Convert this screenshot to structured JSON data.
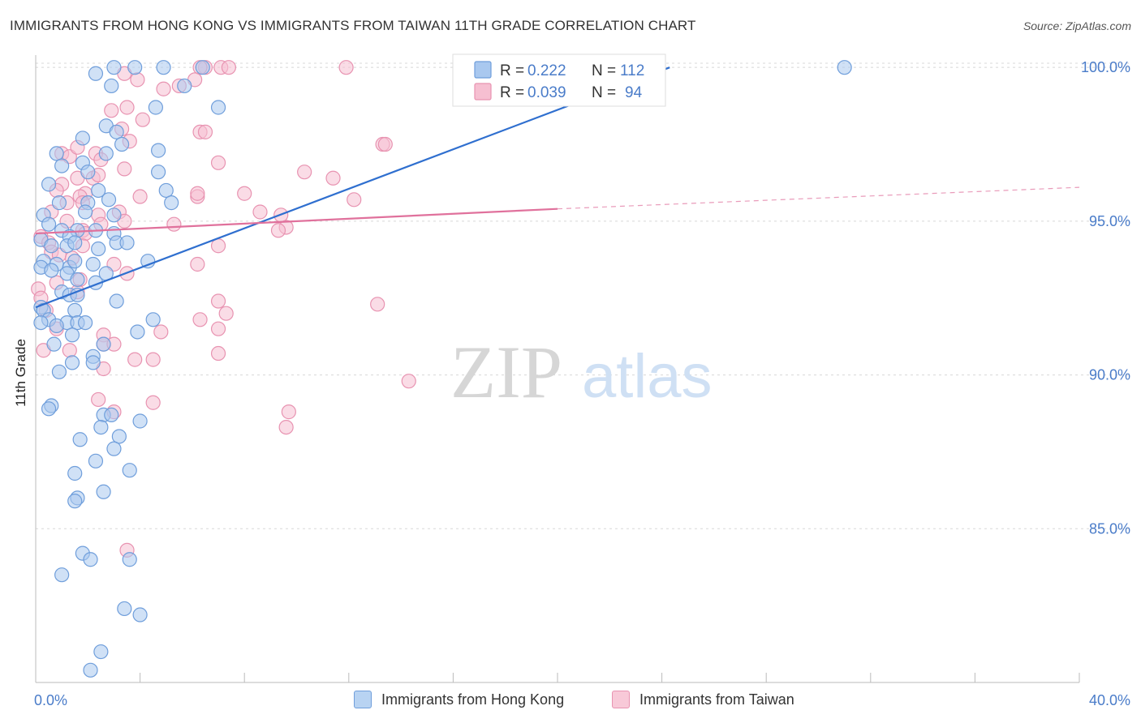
{
  "title": "IMMIGRANTS FROM HONG KONG VS IMMIGRANTS FROM TAIWAN 11TH GRADE CORRELATION CHART",
  "source": "Source: ZipAtlas.com",
  "watermark": {
    "zip": "ZIP",
    "atlas": "atlas"
  },
  "colors": {
    "blue_fill": "#a9c8ef",
    "blue_stroke": "#6f9edb",
    "blue_line": "#2f6fcf",
    "pink_fill": "#f6bfd1",
    "pink_stroke": "#e893b1",
    "pink_line": "#e0719c",
    "axis_text": "#4a7cc9",
    "grid": "#d8d8d8"
  },
  "chart_data": {
    "type": "scatter",
    "title": "IMMIGRANTS FROM HONG KONG VS IMMIGRANTS FROM TAIWAN 11TH GRADE CORRELATION CHART",
    "xlabel": "",
    "ylabel": "11th Grade",
    "xlim": [
      0,
      40
    ],
    "ylim": [
      80,
      100.4
    ],
    "x_tick_labels": [
      {
        "value": 0,
        "label": "0.0%"
      },
      {
        "value": 40,
        "label": "40.0%"
      }
    ],
    "y_ticks": [
      {
        "value": 100,
        "label": "100.0%"
      },
      {
        "value": 95,
        "label": "95.0%"
      },
      {
        "value": 90,
        "label": "90.0%"
      },
      {
        "value": 85,
        "label": "85.0%"
      }
    ],
    "legend": [
      {
        "series": "Immigrants from Hong Kong",
        "r_label": "R =",
        "r": "0.222",
        "n_label": "N =",
        "n": "112"
      },
      {
        "series": "Immigrants from Taiwan",
        "r_label": "R =",
        "r": "0.039",
        "n_label": "N =",
        "n": "94"
      }
    ],
    "series": [
      {
        "name": "Immigrants from Hong Kong",
        "color": "#a9c8ef",
        "trend": {
          "x0": 0,
          "y0": 92.2,
          "x1": 24.3,
          "y1": 100.0,
          "x_end": 30.5,
          "y_end": 102.0
        },
        "points": [
          [
            3.0,
            100.0
          ],
          [
            3.8,
            100.0
          ],
          [
            4.9,
            100.0
          ],
          [
            6.4,
            100.0
          ],
          [
            31.0,
            100.0
          ],
          [
            2.3,
            99.8
          ],
          [
            2.9,
            99.4
          ],
          [
            5.7,
            99.4
          ],
          [
            4.6,
            98.7
          ],
          [
            7.0,
            98.7
          ],
          [
            2.7,
            98.1
          ],
          [
            3.1,
            97.9
          ],
          [
            1.8,
            97.7
          ],
          [
            0.8,
            97.2
          ],
          [
            2.7,
            97.2
          ],
          [
            4.7,
            97.3
          ],
          [
            3.3,
            97.5
          ],
          [
            1.0,
            96.8
          ],
          [
            1.8,
            96.9
          ],
          [
            2.0,
            96.6
          ],
          [
            4.7,
            96.6
          ],
          [
            0.5,
            96.2
          ],
          [
            2.4,
            96.0
          ],
          [
            2.0,
            95.6
          ],
          [
            5.0,
            96.0
          ],
          [
            5.2,
            95.6
          ],
          [
            0.9,
            95.6
          ],
          [
            2.8,
            95.7
          ],
          [
            3.0,
            95.2
          ],
          [
            1.9,
            95.3
          ],
          [
            0.3,
            95.2
          ],
          [
            0.5,
            94.9
          ],
          [
            1.0,
            94.7
          ],
          [
            1.6,
            94.7
          ],
          [
            1.3,
            94.5
          ],
          [
            2.3,
            94.7
          ],
          [
            3.0,
            94.6
          ],
          [
            0.2,
            94.4
          ],
          [
            0.6,
            94.2
          ],
          [
            1.2,
            94.2
          ],
          [
            1.5,
            94.3
          ],
          [
            2.4,
            94.1
          ],
          [
            3.1,
            94.3
          ],
          [
            3.5,
            94.3
          ],
          [
            0.3,
            93.7
          ],
          [
            0.8,
            93.6
          ],
          [
            1.3,
            93.5
          ],
          [
            1.5,
            93.7
          ],
          [
            2.2,
            93.6
          ],
          [
            4.3,
            93.7
          ],
          [
            0.2,
            93.5
          ],
          [
            0.6,
            93.4
          ],
          [
            1.2,
            93.3
          ],
          [
            1.6,
            93.1
          ],
          [
            2.3,
            93.0
          ],
          [
            2.7,
            93.3
          ],
          [
            1.0,
            92.7
          ],
          [
            1.3,
            92.6
          ],
          [
            1.6,
            92.6
          ],
          [
            3.1,
            92.4
          ],
          [
            0.2,
            92.2
          ],
          [
            0.3,
            92.1
          ],
          [
            1.5,
            92.1
          ],
          [
            0.5,
            91.8
          ],
          [
            1.2,
            91.7
          ],
          [
            1.6,
            91.7
          ],
          [
            1.9,
            91.7
          ],
          [
            4.5,
            91.8
          ],
          [
            0.2,
            91.7
          ],
          [
            0.8,
            91.6
          ],
          [
            1.4,
            91.3
          ],
          [
            3.9,
            91.4
          ],
          [
            0.7,
            91.0
          ],
          [
            2.6,
            91.0
          ],
          [
            2.2,
            90.6
          ],
          [
            1.4,
            90.4
          ],
          [
            2.2,
            90.4
          ],
          [
            0.9,
            90.1
          ],
          [
            0.6,
            89.0
          ],
          [
            0.5,
            88.9
          ],
          [
            2.6,
            88.7
          ],
          [
            2.9,
            88.7
          ],
          [
            4.0,
            88.5
          ],
          [
            2.5,
            88.3
          ],
          [
            3.2,
            88.0
          ],
          [
            1.7,
            87.9
          ],
          [
            3.0,
            87.6
          ],
          [
            2.3,
            87.2
          ],
          [
            1.5,
            86.8
          ],
          [
            3.6,
            86.9
          ],
          [
            2.6,
            86.2
          ],
          [
            1.6,
            86.0
          ],
          [
            1.5,
            85.9
          ],
          [
            1.8,
            84.2
          ],
          [
            2.1,
            84.0
          ],
          [
            3.6,
            84.0
          ],
          [
            1.0,
            83.5
          ],
          [
            3.4,
            82.4
          ],
          [
            4.0,
            82.2
          ],
          [
            2.5,
            81.0
          ],
          [
            2.1,
            80.4
          ]
        ]
      },
      {
        "name": "Immigrants from Taiwan",
        "color": "#f6bfd1",
        "trend": {
          "x0": 0,
          "y0": 94.6,
          "x1": 20.0,
          "y1": 95.4,
          "x_end": 40.0,
          "y_end": 96.1
        },
        "points": [
          [
            6.5,
            100.0
          ],
          [
            6.3,
            100.0
          ],
          [
            7.1,
            100.0
          ],
          [
            7.4,
            100.0
          ],
          [
            11.9,
            100.0
          ],
          [
            3.4,
            99.8
          ],
          [
            3.9,
            99.6
          ],
          [
            5.5,
            99.4
          ],
          [
            6.1,
            99.6
          ],
          [
            4.9,
            99.3
          ],
          [
            2.9,
            98.6
          ],
          [
            3.5,
            98.7
          ],
          [
            4.1,
            98.3
          ],
          [
            3.3,
            98.0
          ],
          [
            6.3,
            97.9
          ],
          [
            6.5,
            97.9
          ],
          [
            3.6,
            97.6
          ],
          [
            13.3,
            97.5
          ],
          [
            13.4,
            97.5
          ],
          [
            1.0,
            97.2
          ],
          [
            2.3,
            97.2
          ],
          [
            1.3,
            97.1
          ],
          [
            1.6,
            97.4
          ],
          [
            2.5,
            97.0
          ],
          [
            7.0,
            96.9
          ],
          [
            3.4,
            96.7
          ],
          [
            1.6,
            96.4
          ],
          [
            2.2,
            96.4
          ],
          [
            2.4,
            96.5
          ],
          [
            1.0,
            96.2
          ],
          [
            0.8,
            96.0
          ],
          [
            1.9,
            95.9
          ],
          [
            1.7,
            95.8
          ],
          [
            6.2,
            95.8
          ],
          [
            1.8,
            95.6
          ],
          [
            4.0,
            95.8
          ],
          [
            6.2,
            95.9
          ],
          [
            8.0,
            95.9
          ],
          [
            1.2,
            95.6
          ],
          [
            0.6,
            95.3
          ],
          [
            2.4,
            95.2
          ],
          [
            3.2,
            95.3
          ],
          [
            9.4,
            95.2
          ],
          [
            1.2,
            95.0
          ],
          [
            2.5,
            94.9
          ],
          [
            3.4,
            95.0
          ],
          [
            9.6,
            94.8
          ],
          [
            9.3,
            94.7
          ],
          [
            1.8,
            94.7
          ],
          [
            1.9,
            94.6
          ],
          [
            0.2,
            94.5
          ],
          [
            0.5,
            94.3
          ],
          [
            1.8,
            94.2
          ],
          [
            7.0,
            94.2
          ],
          [
            0.6,
            94.0
          ],
          [
            0.9,
            93.9
          ],
          [
            1.4,
            93.8
          ],
          [
            3.0,
            93.6
          ],
          [
            6.2,
            93.6
          ],
          [
            3.5,
            93.3
          ],
          [
            1.7,
            93.1
          ],
          [
            0.8,
            93.0
          ],
          [
            1.6,
            92.7
          ],
          [
            0.1,
            92.8
          ],
          [
            0.2,
            92.5
          ],
          [
            7.0,
            92.4
          ],
          [
            0.4,
            92.1
          ],
          [
            7.3,
            92.0
          ],
          [
            6.3,
            91.8
          ],
          [
            0.8,
            91.5
          ],
          [
            7.0,
            91.5
          ],
          [
            2.6,
            91.3
          ],
          [
            4.8,
            91.4
          ],
          [
            2.6,
            91.0
          ],
          [
            3.0,
            91.0
          ],
          [
            0.3,
            90.8
          ],
          [
            7.0,
            90.7
          ],
          [
            1.3,
            90.8
          ],
          [
            3.8,
            90.5
          ],
          [
            4.5,
            90.5
          ],
          [
            2.6,
            90.2
          ],
          [
            14.3,
            89.8
          ],
          [
            2.4,
            89.2
          ],
          [
            4.5,
            89.1
          ],
          [
            3.0,
            88.8
          ],
          [
            9.7,
            88.8
          ],
          [
            9.6,
            88.3
          ],
          [
            3.5,
            84.3
          ],
          [
            13.1,
            92.3
          ],
          [
            11.4,
            96.4
          ],
          [
            5.3,
            94.9
          ],
          [
            8.6,
            95.3
          ],
          [
            10.3,
            96.6
          ],
          [
            12.2,
            95.7
          ]
        ]
      }
    ]
  }
}
